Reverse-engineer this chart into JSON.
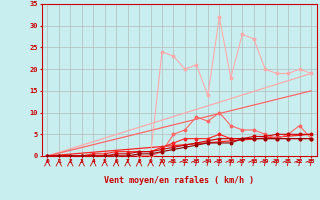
{
  "xlabel": "Vent moyen/en rafales ( km/h )",
  "bg_color": "#c8eef0",
  "grid_color": "#b0b0b0",
  "x_values": [
    0,
    1,
    2,
    3,
    4,
    5,
    6,
    7,
    8,
    9,
    10,
    11,
    12,
    13,
    14,
    15,
    16,
    17,
    18,
    19,
    20,
    21,
    22,
    23
  ],
  "xlim": [
    -0.5,
    23.5
  ],
  "ylim": [
    0,
    35
  ],
  "yticks": [
    0,
    5,
    10,
    15,
    20,
    25,
    30,
    35
  ],
  "c1": "#ffaaaa",
  "c2": "#ff6666",
  "c3": "#ff2222",
  "c4": "#cc0000",
  "c5": "#990000",
  "line1_y": [
    0,
    0,
    0,
    0,
    0,
    0,
    0,
    0,
    0,
    0,
    24,
    23,
    20,
    21,
    14,
    32,
    18,
    28,
    27,
    20,
    19,
    19,
    20,
    19
  ],
  "line2_y": [
    0,
    0,
    0,
    0,
    0,
    0,
    0,
    0,
    0,
    0,
    1,
    5,
    6,
    9,
    8,
    10,
    7,
    6,
    6,
    5,
    4,
    5,
    7,
    4
  ],
  "line3_y": [
    0,
    0,
    0,
    0,
    0.5,
    0.5,
    1,
    1,
    1,
    1,
    2,
    3,
    4,
    4,
    4,
    5,
    4,
    4,
    4,
    4,
    4,
    4,
    4,
    4
  ],
  "line4_y": [
    0,
    0,
    0,
    0,
    0,
    0,
    0.5,
    0.5,
    1,
    1,
    1.5,
    2,
    2.5,
    3,
    3.5,
    4,
    4,
    4,
    4.5,
    4.5,
    5,
    5,
    5,
    5
  ],
  "line5_y": [
    0,
    0,
    0,
    0,
    0,
    0,
    0,
    0,
    0.5,
    0.5,
    1,
    1.5,
    2,
    2.5,
    3,
    3,
    3,
    4,
    4,
    4,
    4,
    4,
    4,
    4
  ],
  "trend1_end": 19,
  "trend2_end": 15,
  "trend3_end": 5,
  "arrow_down_x": [
    0,
    1,
    2,
    3,
    4,
    5,
    6,
    7,
    8,
    9,
    10
  ],
  "arrow_diag_x": [
    11,
    12,
    13,
    14,
    15,
    16,
    17,
    18,
    19,
    20,
    21,
    22,
    23
  ]
}
